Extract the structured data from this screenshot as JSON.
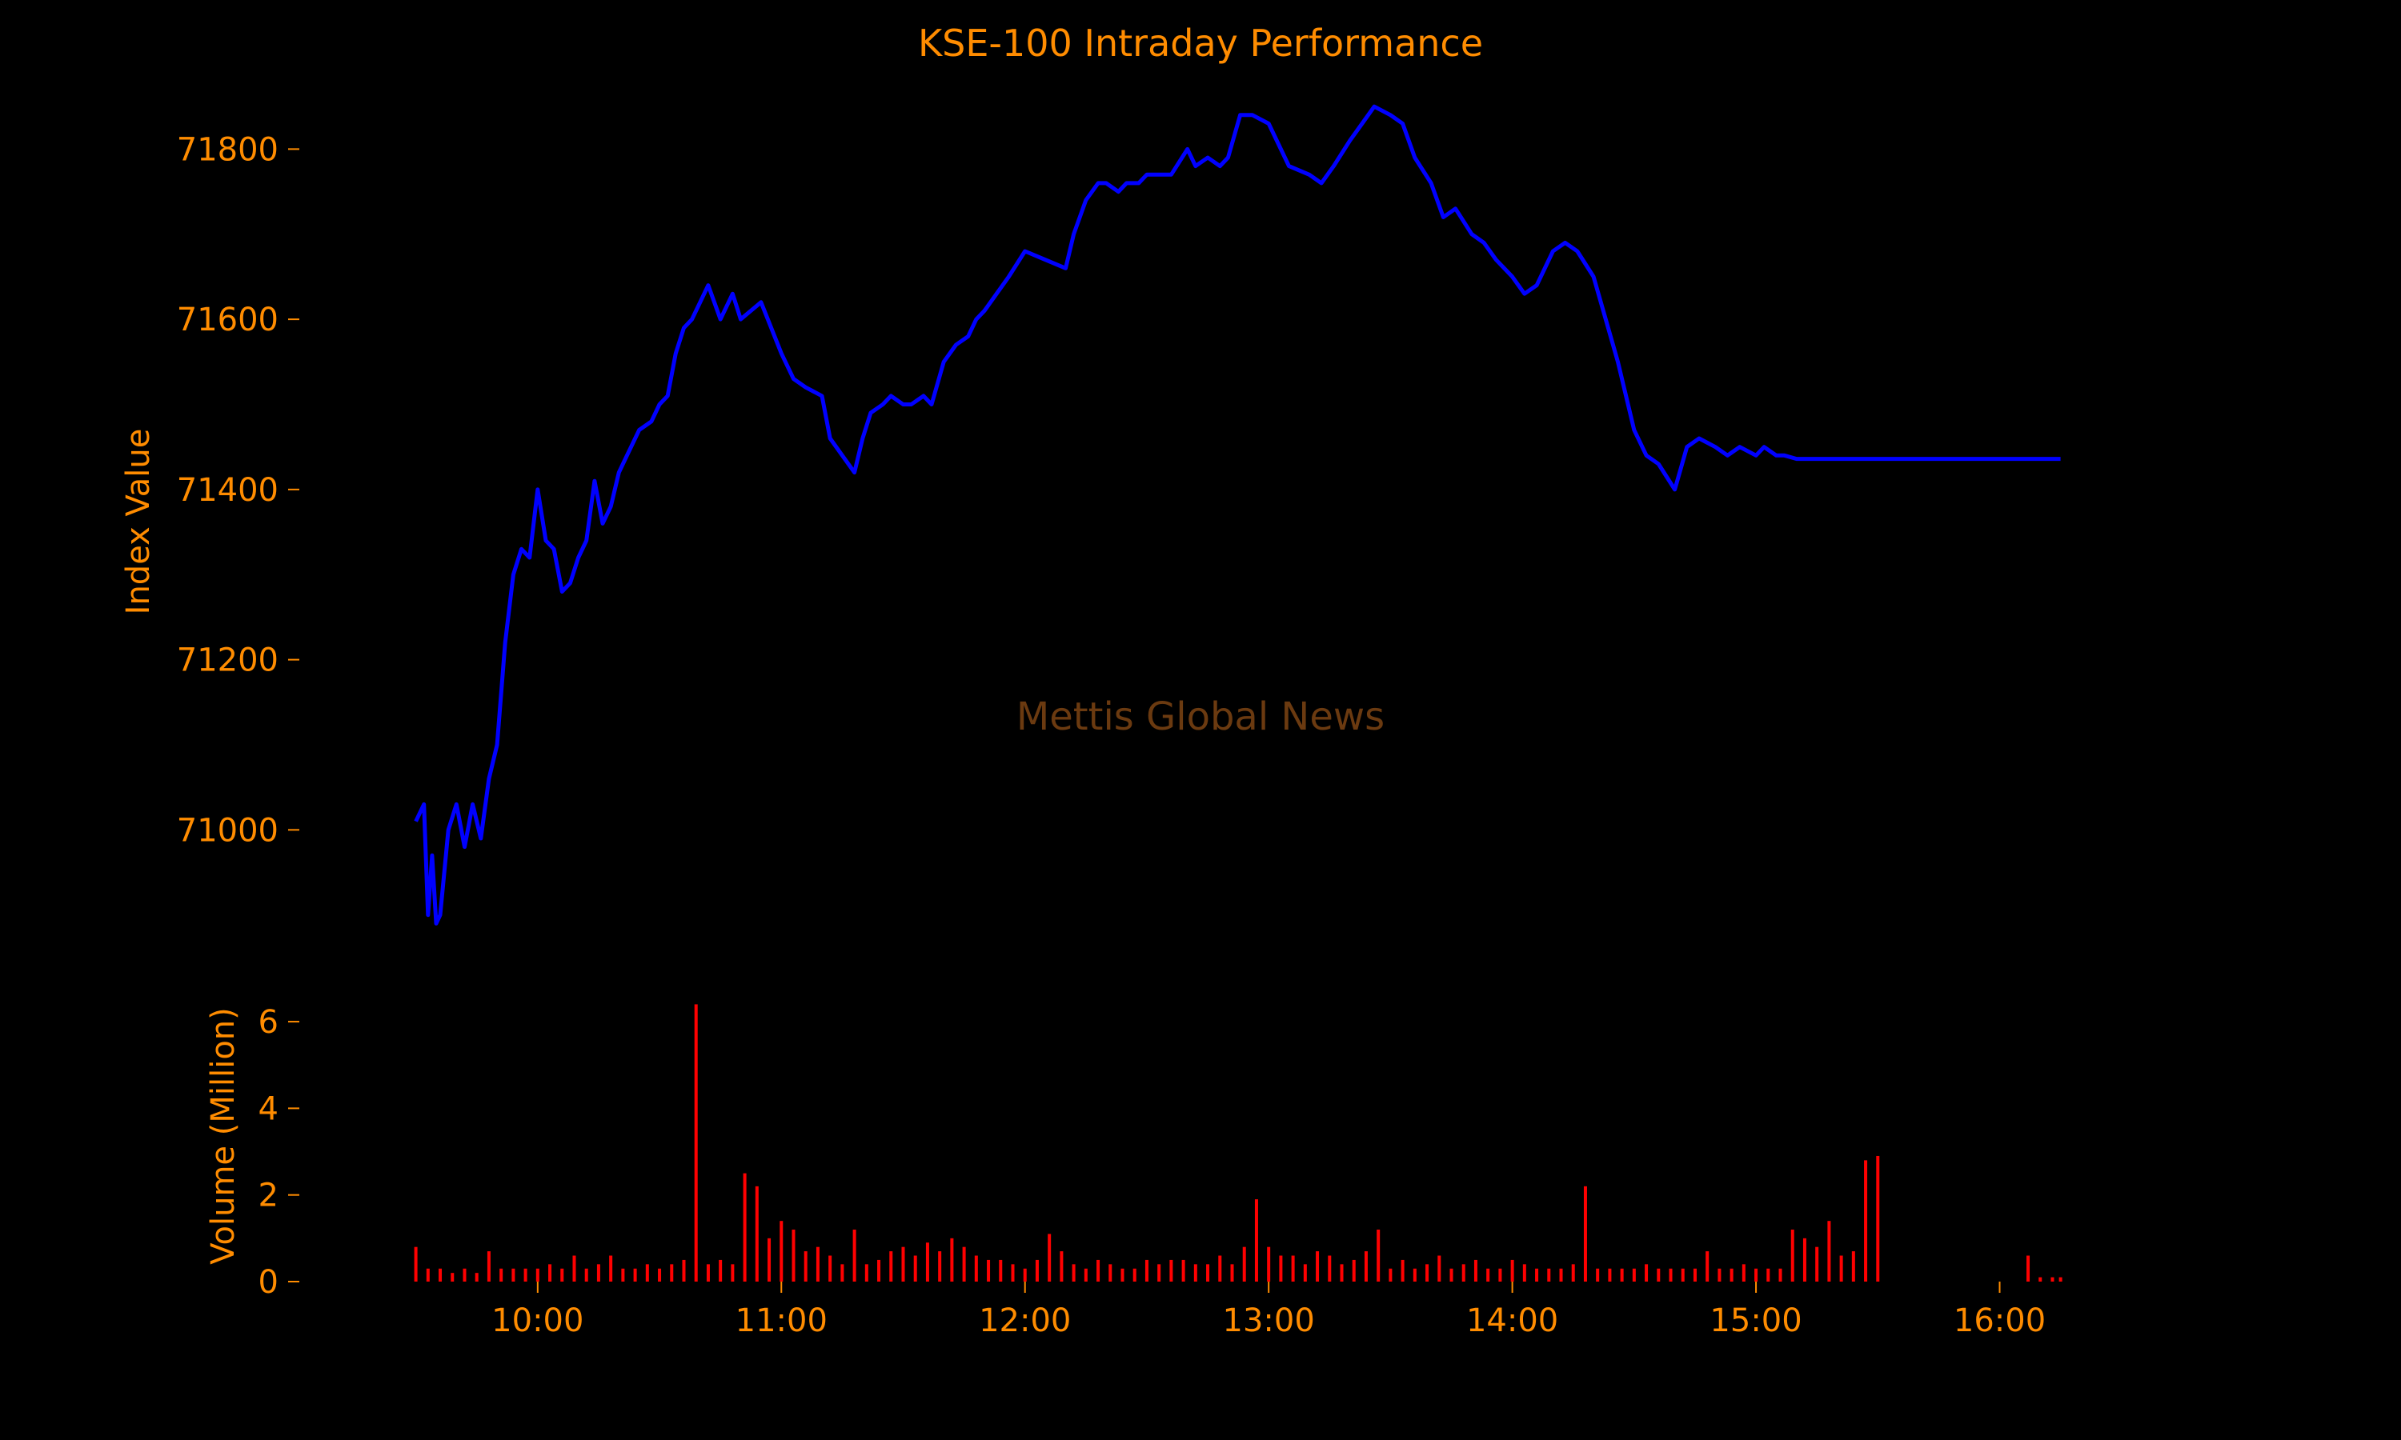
{
  "chart_data": {
    "type": "line",
    "title": "KSE-100 Intraday Performance",
    "watermark": "Mettis Global News",
    "colors": {
      "background": "#000000",
      "text": "#ff8c00",
      "index_line": "#0000ff",
      "volume_bars": "#ff0000",
      "watermark": "#6b3a10"
    },
    "grid": false,
    "x_ticks": [
      "10:00",
      "11:00",
      "12:00",
      "13:00",
      "14:00",
      "15:00",
      "16:00"
    ],
    "index_panel": {
      "ylabel": "Index Value",
      "yticks": [
        71000,
        71200,
        71400,
        71600,
        71800
      ],
      "ylim": [
        70880,
        71900
      ],
      "series": {
        "x": [
          "09:30",
          "09:32",
          "09:33",
          "09:34",
          "09:35",
          "09:36",
          "09:38",
          "09:40",
          "09:42",
          "09:44",
          "09:46",
          "09:48",
          "09:50",
          "09:52",
          "09:54",
          "09:56",
          "09:58",
          "10:00",
          "10:02",
          "10:04",
          "10:06",
          "10:08",
          "10:10",
          "10:12",
          "10:14",
          "10:16",
          "10:18",
          "10:20",
          "10:22",
          "10:25",
          "10:28",
          "10:30",
          "10:32",
          "10:34",
          "10:36",
          "10:38",
          "10:40",
          "10:42",
          "10:45",
          "10:48",
          "10:50",
          "10:55",
          "11:00",
          "11:03",
          "11:06",
          "11:10",
          "11:12",
          "11:15",
          "11:18",
          "11:20",
          "11:22",
          "11:25",
          "11:27",
          "11:30",
          "11:32",
          "11:35",
          "11:37",
          "11:40",
          "11:43",
          "11:46",
          "11:48",
          "11:50",
          "11:53",
          "11:56",
          "12:00",
          "12:05",
          "12:10",
          "12:12",
          "12:15",
          "12:18",
          "12:20",
          "12:23",
          "12:25",
          "12:28",
          "12:30",
          "12:33",
          "12:36",
          "12:40",
          "12:42",
          "12:45",
          "12:48",
          "12:50",
          "12:53",
          "12:56",
          "13:00",
          "13:05",
          "13:10",
          "13:13",
          "13:16",
          "13:20",
          "13:23",
          "13:26",
          "13:30",
          "13:33",
          "13:36",
          "13:40",
          "13:43",
          "13:46",
          "13:50",
          "13:53",
          "13:56",
          "14:00",
          "14:03",
          "14:06",
          "14:10",
          "14:13",
          "14:16",
          "14:20",
          "14:23",
          "14:26",
          "14:30",
          "14:33",
          "14:36",
          "14:40",
          "14:43",
          "14:46",
          "14:50",
          "14:53",
          "14:56",
          "15:00",
          "15:02",
          "15:05",
          "15:07",
          "15:10",
          "15:12",
          "15:14",
          "15:16",
          "15:18",
          "15:20",
          "15:22",
          "15:24",
          "15:26",
          "15:28",
          "15:30",
          "16:00",
          "16:15"
        ],
        "y": [
          71010,
          71030,
          70900,
          70970,
          70890,
          70900,
          71000,
          71030,
          70980,
          71030,
          70990,
          71060,
          71100,
          71220,
          71300,
          71330,
          71320,
          71400,
          71340,
          71330,
          71280,
          71290,
          71320,
          71340,
          71410,
          71360,
          71380,
          71420,
          71440,
          71470,
          71480,
          71500,
          71510,
          71560,
          71590,
          71600,
          71620,
          71640,
          71600,
          71630,
          71600,
          71620,
          71560,
          71530,
          71520,
          71510,
          71460,
          71440,
          71420,
          71460,
          71490,
          71500,
          71510,
          71500,
          71500,
          71510,
          71500,
          71550,
          71570,
          71580,
          71600,
          71610,
          71630,
          71650,
          71680,
          71670,
          71660,
          71700,
          71740,
          71760,
          71760,
          71750,
          71760,
          71760,
          71770,
          71770,
          71770,
          71800,
          71780,
          71790,
          71780,
          71790,
          71840,
          71840,
          71830,
          71780,
          71770,
          71760,
          71780,
          71810,
          71830,
          71850,
          71840,
          71830,
          71790,
          71760,
          71720,
          71730,
          71700,
          71690,
          71670,
          71650,
          71630,
          71640,
          71680,
          71690,
          71680,
          71650,
          71600,
          71550,
          71470,
          71440,
          71430,
          71400,
          71450,
          71460,
          71450,
          71440,
          71450,
          71440,
          71450,
          71440,
          71440,
          71436,
          71436,
          71436,
          71436,
          71436,
          71436,
          71436,
          71436,
          71436,
          71436,
          71436,
          71436,
          71436
        ]
      }
    },
    "volume_panel": {
      "ylabel": "Volume (Million)",
      "yticks": [
        0,
        2,
        4,
        6
      ],
      "ylim": [
        0,
        6.5
      ],
      "bars": {
        "x": [
          "09:30",
          "09:33",
          "09:36",
          "09:39",
          "09:42",
          "09:45",
          "09:48",
          "09:51",
          "09:54",
          "09:57",
          "10:00",
          "10:03",
          "10:06",
          "10:09",
          "10:12",
          "10:15",
          "10:18",
          "10:21",
          "10:24",
          "10:27",
          "10:30",
          "10:33",
          "10:36",
          "10:39",
          "10:42",
          "10:45",
          "10:48",
          "10:51",
          "10:54",
          "10:57",
          "11:00",
          "11:03",
          "11:06",
          "11:09",
          "11:12",
          "11:15",
          "11:18",
          "11:21",
          "11:24",
          "11:27",
          "11:30",
          "11:33",
          "11:36",
          "11:39",
          "11:42",
          "11:45",
          "11:48",
          "11:51",
          "11:54",
          "11:57",
          "12:00",
          "12:03",
          "12:06",
          "12:09",
          "12:12",
          "12:15",
          "12:18",
          "12:21",
          "12:24",
          "12:27",
          "12:30",
          "12:33",
          "12:36",
          "12:39",
          "12:42",
          "12:45",
          "12:48",
          "12:51",
          "12:54",
          "12:57",
          "13:00",
          "13:03",
          "13:06",
          "13:09",
          "13:12",
          "13:15",
          "13:18",
          "13:21",
          "13:24",
          "13:27",
          "13:30",
          "13:33",
          "13:36",
          "13:39",
          "13:42",
          "13:45",
          "13:48",
          "13:51",
          "13:54",
          "13:57",
          "14:00",
          "14:03",
          "14:06",
          "14:09",
          "14:12",
          "14:15",
          "14:18",
          "14:21",
          "14:24",
          "14:27",
          "14:30",
          "14:33",
          "14:36",
          "14:39",
          "14:42",
          "14:45",
          "14:48",
          "14:51",
          "14:54",
          "14:57",
          "15:00",
          "15:03",
          "15:06",
          "15:09",
          "15:12",
          "15:15",
          "15:18",
          "15:21",
          "15:24",
          "15:27",
          "15:30",
          "16:07",
          "16:10",
          "16:13",
          "16:15"
        ],
        "values": [
          0.8,
          0.3,
          0.3,
          0.2,
          0.3,
          0.2,
          0.7,
          0.3,
          0.3,
          0.3,
          0.3,
          0.4,
          0.3,
          0.6,
          0.3,
          0.4,
          0.6,
          0.3,
          0.3,
          0.4,
          0.3,
          0.4,
          0.5,
          6.4,
          0.4,
          0.5,
          0.4,
          2.5,
          2.2,
          1.0,
          1.4,
          1.2,
          0.7,
          0.8,
          0.6,
          0.4,
          1.2,
          0.4,
          0.5,
          0.7,
          0.8,
          0.6,
          0.9,
          0.7,
          1.0,
          0.8,
          0.6,
          0.5,
          0.5,
          0.4,
          0.3,
          0.5,
          1.1,
          0.7,
          0.4,
          0.3,
          0.5,
          0.4,
          0.3,
          0.3,
          0.5,
          0.4,
          0.5,
          0.5,
          0.4,
          0.4,
          0.6,
          0.4,
          0.8,
          1.9,
          0.8,
          0.6,
          0.6,
          0.4,
          0.7,
          0.6,
          0.4,
          0.5,
          0.7,
          1.2,
          0.3,
          0.5,
          0.3,
          0.4,
          0.6,
          0.3,
          0.4,
          0.5,
          0.3,
          0.3,
          0.5,
          0.4,
          0.3,
          0.3,
          0.3,
          0.4,
          2.2,
          0.3,
          0.3,
          0.3,
          0.3,
          0.4,
          0.3,
          0.3,
          0.3,
          0.3,
          0.7,
          0.3,
          0.3,
          0.4,
          0.3,
          0.3,
          0.3,
          1.2,
          1.0,
          0.8,
          1.4,
          0.6,
          0.7,
          2.8,
          2.9,
          0.6,
          0.1,
          0.1,
          0.1
        ]
      }
    }
  }
}
